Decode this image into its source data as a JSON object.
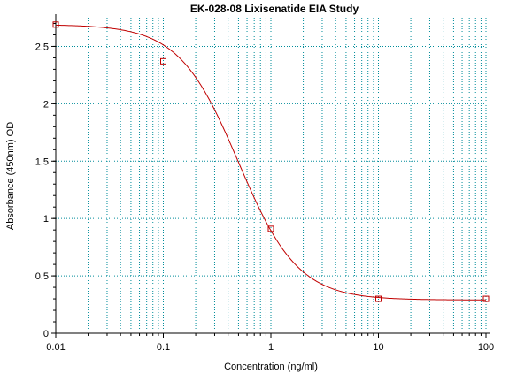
{
  "chart_data": {
    "type": "scatter",
    "title": "EK-028-08 Lixisenatide EIA  Study",
    "xlabel": "Concentration (ng/ml)",
    "ylabel": "Absorbance (450nm) OD",
    "xscale": "log",
    "xlim": [
      0.01,
      100
    ],
    "ylim": [
      0,
      2.75
    ],
    "x_ticks": [
      "0.01",
      "0.1",
      "1",
      "10",
      "100"
    ],
    "y_ticks": [
      "0",
      "0.5",
      "1",
      "1.5",
      "2",
      "2.5"
    ],
    "grid": true,
    "series": [
      {
        "points": [
          {
            "x": 0.01,
            "y": 2.69
          },
          {
            "x": 0.1,
            "y": 2.37
          },
          {
            "x": 1,
            "y": 0.91
          },
          {
            "x": 10,
            "y": 0.3
          },
          {
            "x": 100,
            "y": 0.3
          }
        ],
        "fit": {
          "model": "4PL",
          "top": 2.69,
          "bottom": 0.29,
          "ec50": 0.5,
          "hill": 1.57
        },
        "color": "#c00000"
      }
    ],
    "grid_color": "#008c9a",
    "axis_color": "#000000"
  }
}
